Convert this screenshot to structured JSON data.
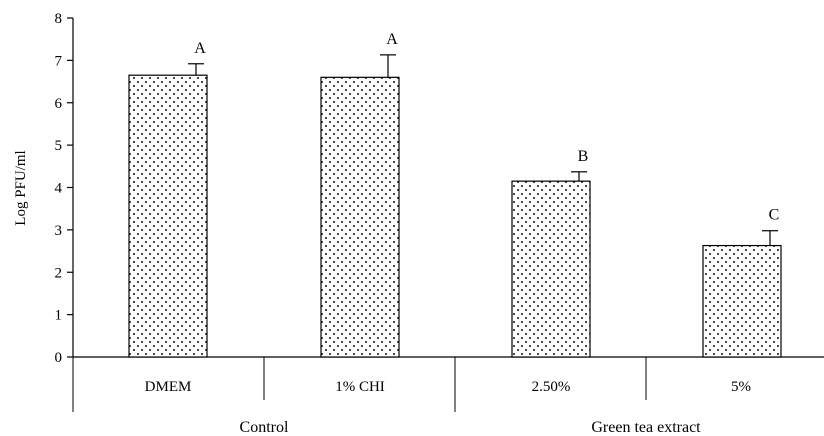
{
  "chart_data": {
    "type": "bar",
    "title": "",
    "xlabel": "",
    "ylabel": "Log PFU/ml",
    "ylim": [
      0,
      8
    ],
    "yticks": [
      "0",
      "1",
      "2",
      "3",
      "4",
      "5",
      "6",
      "7",
      "8"
    ],
    "grid": false,
    "categories": [
      "DMEM",
      "1% CHI",
      "2.50%",
      "5%"
    ],
    "values": [
      6.65,
      6.6,
      4.15,
      2.63
    ],
    "errors": [
      0.27,
      0.53,
      0.22,
      0.35
    ],
    "letters": [
      "A",
      "A",
      "B",
      "C"
    ],
    "groups": [
      {
        "label": "Control",
        "members": [
          "DMEM",
          "1% CHI"
        ]
      },
      {
        "label": "Green tea extract",
        "members": [
          "2.50%",
          "5%"
        ]
      }
    ],
    "bar_fill": "dotted",
    "bar_color": "#ffffff",
    "dot_color": "#000000"
  }
}
